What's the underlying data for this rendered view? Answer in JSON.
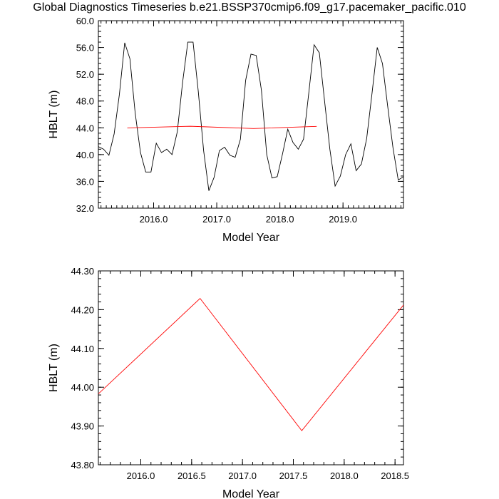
{
  "title": "Global Diagnostics Timeseries b.e21.BSSP370cmip6.f09_g17.pacemaker_pacific.010",
  "colors": {
    "monthly": "#000000",
    "annual": "#ff0000",
    "axis": "#000000"
  },
  "chart_data": [
    {
      "type": "line",
      "xlabel": "Model Year",
      "ylabel": "HBLT (m)",
      "xlim": [
        2015.125,
        2019.958
      ],
      "ylim": [
        32.0,
        60.0
      ],
      "x_ticks": [
        2016.0,
        2017.0,
        2018.0,
        2019.0
      ],
      "x_tick_labels": [
        "2016.0",
        "2017.0",
        "2018.0",
        "2019.0"
      ],
      "y_ticks": [
        32.0,
        36.0,
        40.0,
        44.0,
        48.0,
        52.0,
        56.0,
        60.0
      ],
      "y_tick_labels": [
        "32.0",
        "36.0",
        "40.0",
        "44.0",
        "48.0",
        "52.0",
        "56.0",
        "60.0"
      ],
      "grid": false,
      "series": [
        {
          "color": "#000000",
          "x": [
            2015.125,
            2015.208,
            2015.292,
            2015.375,
            2015.458,
            2015.542,
            2015.625,
            2015.708,
            2015.792,
            2015.875,
            2015.958,
            2016.042,
            2016.125,
            2016.208,
            2016.292,
            2016.375,
            2016.458,
            2016.542,
            2016.625,
            2016.708,
            2016.792,
            2016.875,
            2016.958,
            2017.042,
            2017.125,
            2017.208,
            2017.292,
            2017.375,
            2017.458,
            2017.542,
            2017.625,
            2017.708,
            2017.792,
            2017.875,
            2017.958,
            2018.042,
            2018.125,
            2018.208,
            2018.292,
            2018.375,
            2018.458,
            2018.542,
            2018.625,
            2018.708,
            2018.792,
            2018.875,
            2018.958,
            2019.042,
            2019.125,
            2019.208,
            2019.292,
            2019.375,
            2019.458,
            2019.542,
            2019.625,
            2019.708,
            2019.792,
            2019.875,
            2019.958
          ],
          "y": [
            41.2,
            40.8,
            39.9,
            43.1,
            49.0,
            56.7,
            54.3,
            46.2,
            40.3,
            37.4,
            37.4,
            41.7,
            40.3,
            40.8,
            40.0,
            43.4,
            50.7,
            56.8,
            56.8,
            49.4,
            40.6,
            34.6,
            36.6,
            40.6,
            41.1,
            39.9,
            39.6,
            42.3,
            51.1,
            55.0,
            54.8,
            49.6,
            40.0,
            36.5,
            36.7,
            40.1,
            43.8,
            41.8,
            40.8,
            42.3,
            49.2,
            56.4,
            55.2,
            48.0,
            40.8,
            35.3,
            36.8,
            40.0,
            41.6,
            37.6,
            38.6,
            42.4,
            49.0,
            56.0,
            53.6,
            47.2,
            41.0,
            36.2,
            36.7
          ]
        },
        {
          "color": "#ff0000",
          "x": [
            2015.583,
            2016.583,
            2017.583,
            2018.583
          ],
          "y": [
            43.983,
            44.229,
            43.888,
            44.212
          ]
        }
      ]
    },
    {
      "type": "line",
      "xlabel": "Model Year",
      "ylabel": "HBLT (m)",
      "xlim": [
        2015.583,
        2018.583
      ],
      "ylim": [
        43.8,
        44.3
      ],
      "x_ticks": [
        2016.0,
        2016.5,
        2017.0,
        2017.5,
        2018.0,
        2018.5
      ],
      "x_tick_labels": [
        "2016.0",
        "2016.5",
        "2017.0",
        "2017.5",
        "2018.0",
        "2018.5"
      ],
      "y_ticks": [
        43.8,
        43.9,
        44.0,
        44.1,
        44.2,
        44.3
      ],
      "y_tick_labels": [
        "43.80",
        "43.90",
        "44.00",
        "44.10",
        "44.20",
        "44.30"
      ],
      "grid": false,
      "series": [
        {
          "color": "#ff0000",
          "x": [
            2015.583,
            2016.583,
            2017.583,
            2018.583
          ],
          "y": [
            43.983,
            44.229,
            43.888,
            44.212
          ]
        }
      ]
    }
  ]
}
